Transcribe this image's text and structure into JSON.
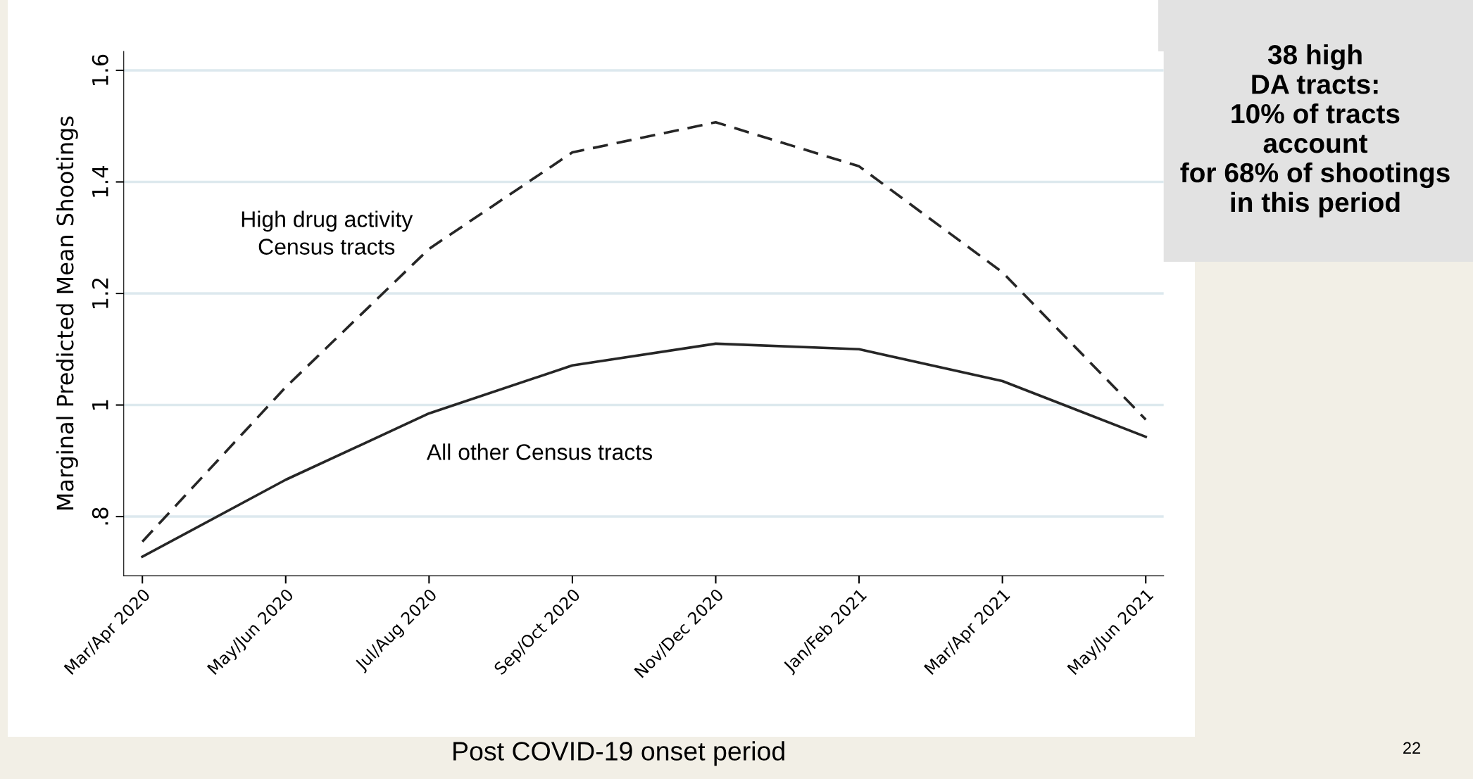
{
  "chart_data": {
    "type": "line",
    "xlabel": "Post COVID-19 onset period",
    "ylabel": "Marginal Predicted Mean Shootings",
    "categories": [
      "Mar/Apr 2020",
      "May/Jun 2020",
      "Jul/Aug 2020",
      "Sep/Oct 2020",
      "Nov/Dec 2020",
      "Jan/Feb 2021",
      "Mar/Apr 2021",
      "May/Jun 2021"
    ],
    "series": [
      {
        "name": "High drug activity\nCensus tracts",
        "color": "#262626",
        "line_style": "dashed",
        "values": [
          0.755,
          1.032,
          1.28,
          1.453,
          1.507,
          1.428,
          1.238,
          0.974
        ]
      },
      {
        "name": "All other Census tracts",
        "color": "#262626",
        "line_style": "solid",
        "values": [
          0.728,
          0.866,
          0.985,
          1.071,
          1.11,
          1.1,
          1.043,
          0.943
        ]
      }
    ],
    "ylim": [
      0.694,
      1.634
    ],
    "yticks": [
      {
        "value": 0.8,
        "label": ".8"
      },
      1,
      1.2,
      1.4,
      1.6
    ],
    "grid": "y",
    "legend": false,
    "marker": "none",
    "annotations": [
      "38 high\nDA tracts:\n10% of tracts\naccount\nfor 68% of shootings\nin this period",
      "22"
    ]
  }
}
